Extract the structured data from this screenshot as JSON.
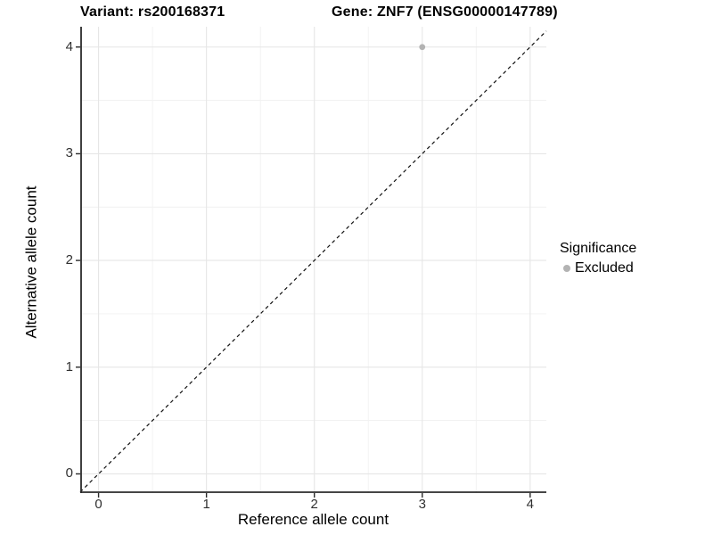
{
  "titles": {
    "left": "Variant: rs200168371",
    "right": "Gene: ZNF7 (ENSG00000147789)"
  },
  "chart_data": {
    "type": "scatter",
    "title_left": "Variant: rs200168371",
    "title_right": "Gene: ZNF7 (ENSG00000147789)",
    "xlabel": "Reference allele count",
    "ylabel": "Alternative allele count",
    "x_ticks": [
      0,
      1,
      2,
      3,
      4
    ],
    "y_ticks": [
      0,
      1,
      2,
      3,
      4
    ],
    "xlim": [
      -0.17,
      4.15
    ],
    "ylim": [
      -0.18,
      4.19
    ],
    "minor_grid_step": 0.5,
    "grid": true,
    "points": [
      {
        "x": 3,
        "y": 4,
        "series": "Excluded"
      }
    ],
    "reference_line": {
      "kind": "identity",
      "style": "dashed",
      "color": "#111111"
    },
    "legend": {
      "title": "Significance",
      "position": "right",
      "items": [
        {
          "label": "Excluded",
          "color": "#b3b3b3"
        }
      ]
    },
    "colors": {
      "point": "#b3b3b3",
      "axis_line": "#2b2b2b",
      "major_grid": "#e6e6e6",
      "minor_grid": "#f1f1f1",
      "tick_text": "#303030"
    }
  }
}
